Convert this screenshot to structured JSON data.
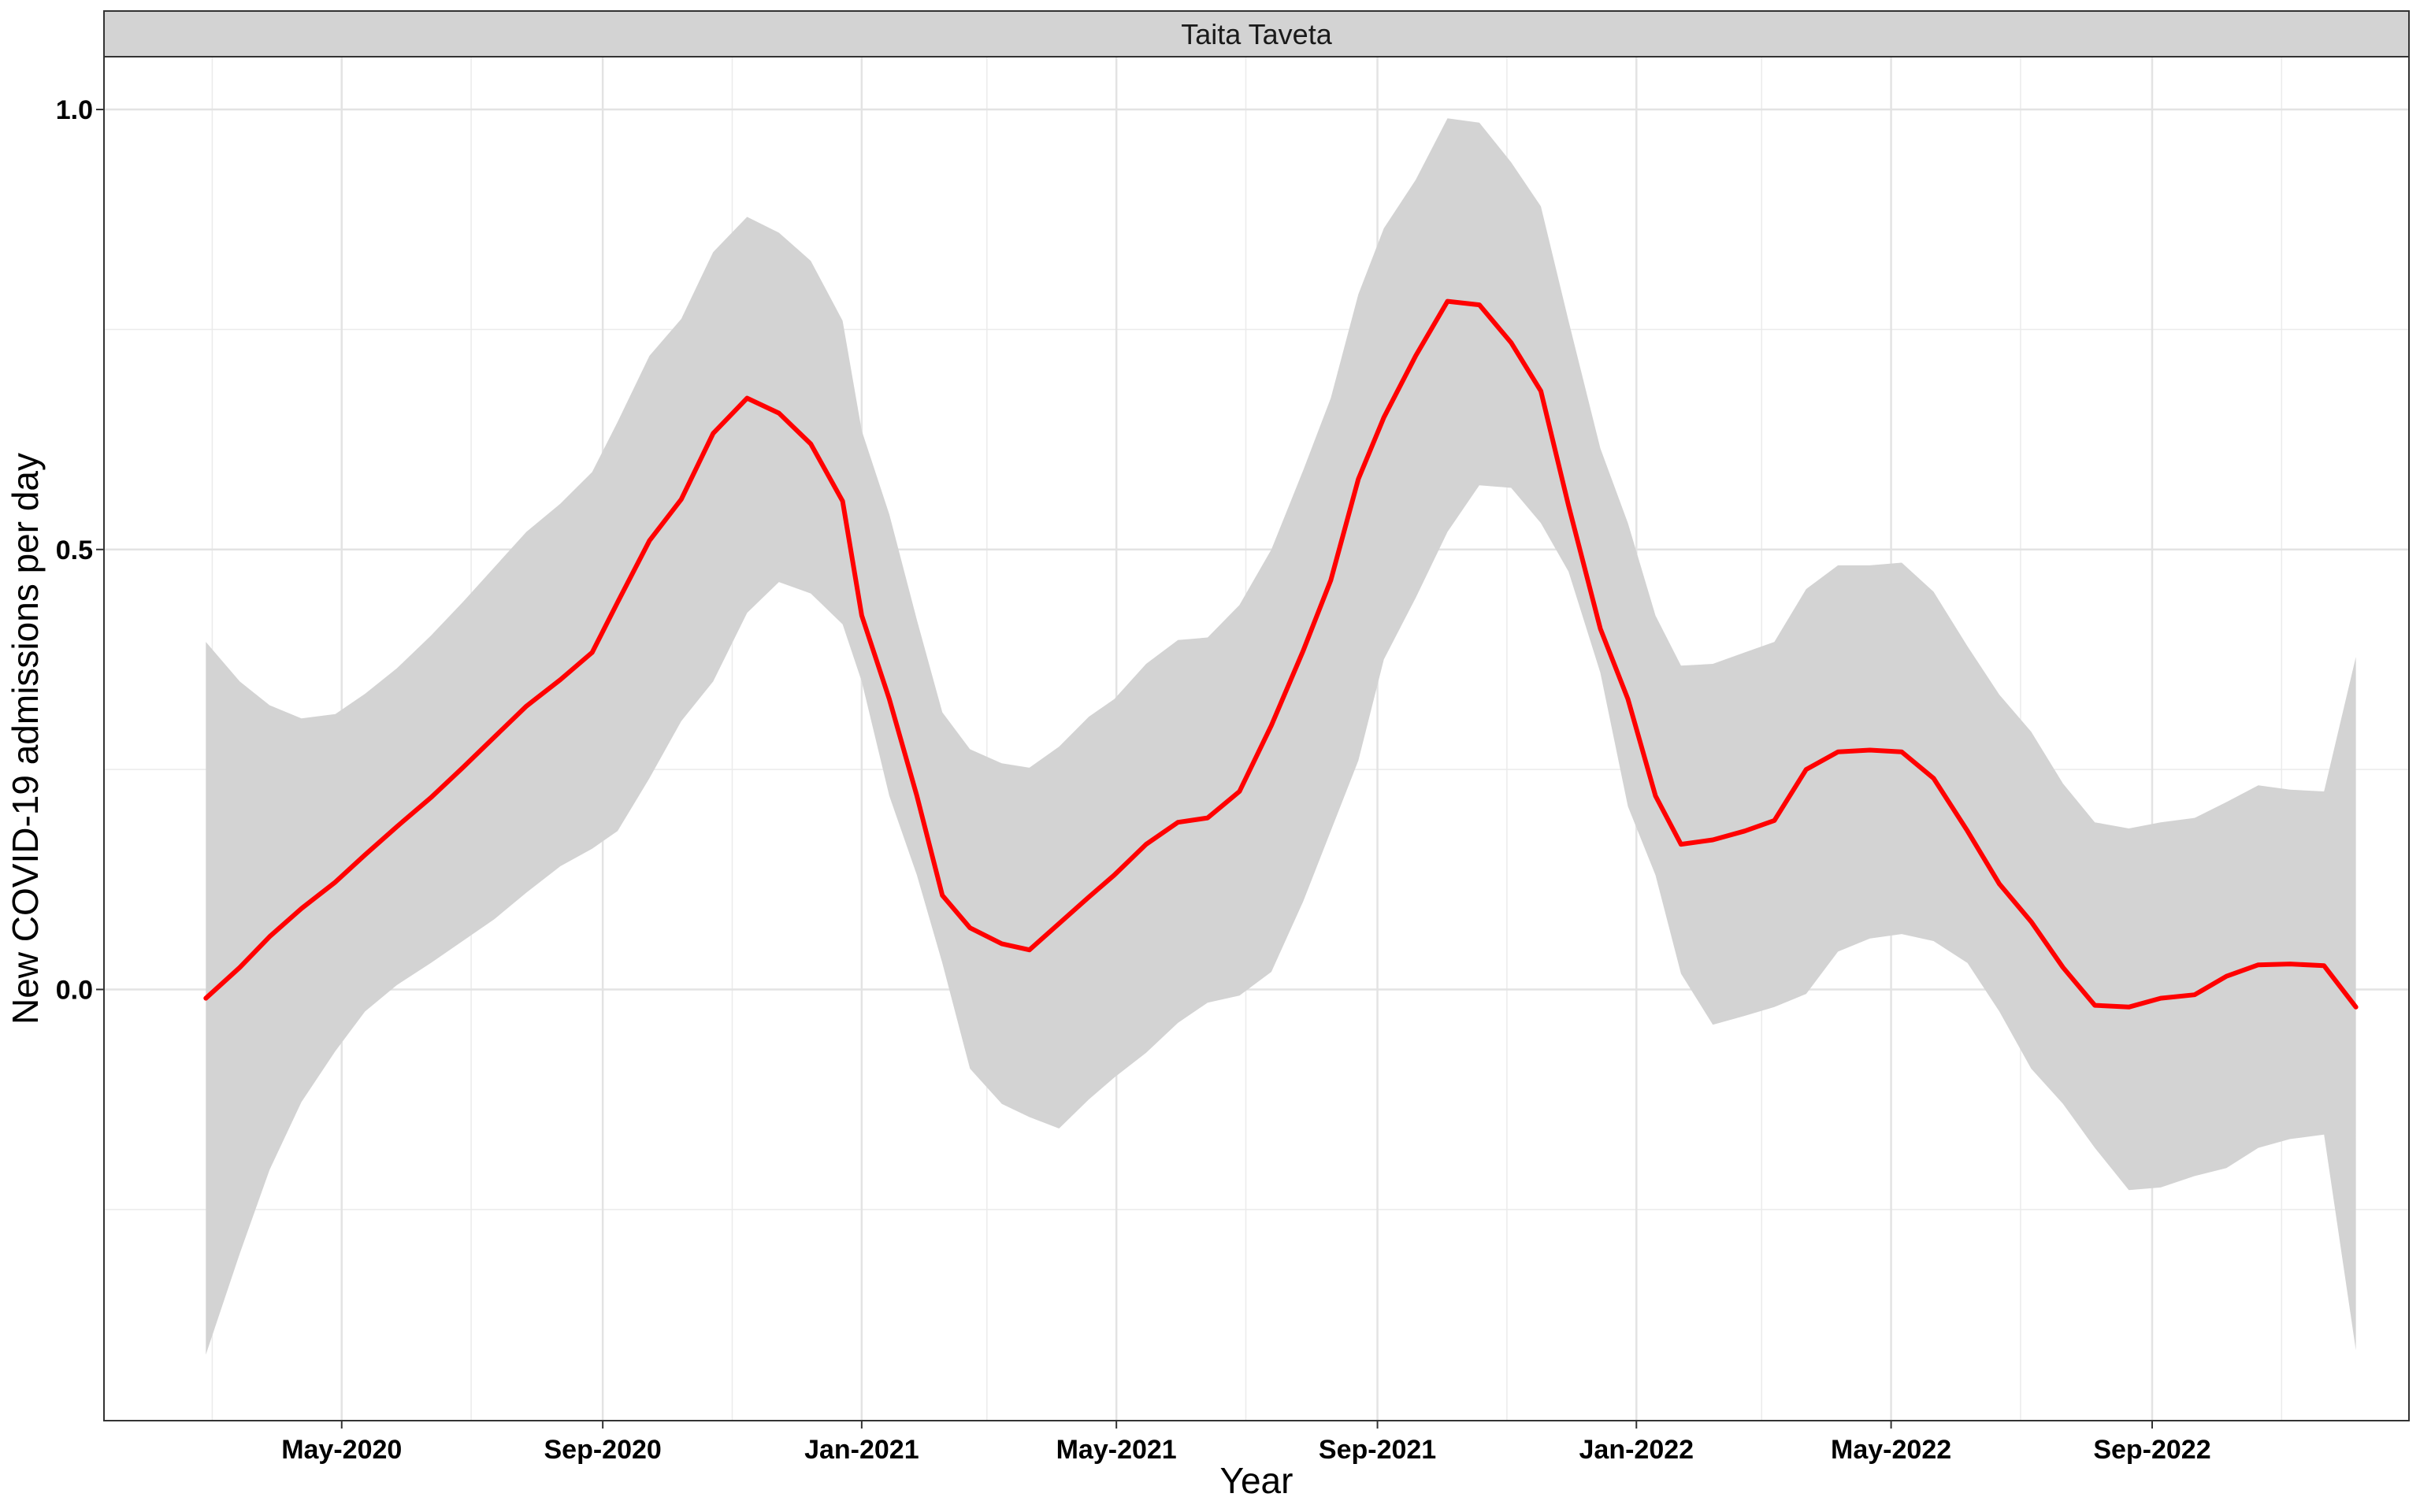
{
  "chart_data": {
    "type": "line",
    "facet_title": "Taita Taveta",
    "xlabel": "Year",
    "ylabel": "New COVID-19 admissions per day",
    "x_tick_labels": [
      "May-2020",
      "Sep-2020",
      "Jan-2021",
      "May-2021",
      "Sep-2021",
      "Jan-2022",
      "May-2022",
      "Sep-2022"
    ],
    "y_ticks": [
      0.0,
      0.5,
      1.0
    ],
    "y_tick_labels": [
      "0.0",
      "0.5",
      "1.0"
    ],
    "xlim": [
      "2020-01-10",
      "2022-12-31"
    ],
    "ylim": [
      -0.49,
      1.06
    ],
    "grid": true,
    "line_color": "#ff0000",
    "ribbon_color": "#d3d3d3",
    "series": [
      {
        "x": [
          "2020-02-27",
          "2020-03-14",
          "2020-03-28",
          "2020-04-12",
          "2020-04-28",
          "2020-05-12",
          "2020-05-27",
          "2020-06-12",
          "2020-06-27",
          "2020-07-12",
          "2020-07-27",
          "2020-08-12",
          "2020-08-27",
          "2020-09-08",
          "2020-09-23",
          "2020-10-08",
          "2020-10-23",
          "2020-11-08",
          "2020-11-23",
          "2020-12-08",
          "2020-12-23",
          "2021-01-01",
          "2021-01-14",
          "2021-01-27",
          "2021-02-08",
          "2021-02-21",
          "2021-03-08",
          "2021-03-21",
          "2021-04-04",
          "2021-04-18",
          "2021-04-30",
          "2021-05-15",
          "2021-05-30",
          "2021-06-13",
          "2021-06-28",
          "2021-07-13",
          "2021-07-28",
          "2021-08-10",
          "2021-08-23",
          "2021-09-04",
          "2021-09-19",
          "2021-10-04",
          "2021-10-19",
          "2021-11-03",
          "2021-11-17",
          "2021-11-30",
          "2021-12-15",
          "2021-12-28",
          "2022-01-10",
          "2022-01-22",
          "2022-02-06",
          "2022-02-21",
          "2022-03-07",
          "2022-03-22",
          "2022-04-06",
          "2022-04-21",
          "2022-05-06",
          "2022-05-21",
          "2022-06-06",
          "2022-06-21",
          "2022-07-06",
          "2022-07-21",
          "2022-08-05",
          "2022-08-21",
          "2022-09-05",
          "2022-09-21",
          "2022-10-06",
          "2022-10-21",
          "2022-11-05",
          "2022-11-21",
          "2022-12-06"
        ],
        "y": [
          -0.01,
          0.025,
          0.06,
          0.092,
          0.122,
          0.153,
          0.185,
          0.218,
          0.252,
          0.287,
          0.322,
          0.352,
          0.383,
          0.44,
          0.51,
          0.557,
          0.632,
          0.672,
          0.655,
          0.62,
          0.555,
          0.425,
          0.33,
          0.22,
          0.107,
          0.07,
          0.052,
          0.045,
          0.075,
          0.105,
          0.13,
          0.165,
          0.19,
          0.195,
          0.225,
          0.3,
          0.385,
          0.465,
          0.58,
          0.65,
          0.72,
          0.782,
          0.778,
          0.735,
          0.68,
          0.55,
          0.41,
          0.33,
          0.22,
          0.165,
          0.17,
          0.18,
          0.192,
          0.25,
          0.27,
          0.272,
          0.27,
          0.24,
          0.18,
          0.12,
          0.077,
          0.025,
          -0.018,
          -0.02,
          -0.01,
          -0.006,
          0.015,
          0.028,
          0.029,
          0.027,
          -0.02
        ],
        "lower": [
          -0.415,
          -0.3,
          -0.205,
          -0.128,
          -0.07,
          -0.025,
          0.005,
          0.03,
          0.055,
          0.08,
          0.11,
          0.14,
          0.16,
          0.18,
          0.24,
          0.305,
          0.35,
          0.428,
          0.463,
          0.45,
          0.415,
          0.35,
          0.22,
          0.13,
          0.03,
          -0.09,
          -0.13,
          -0.145,
          -0.158,
          -0.125,
          -0.1,
          -0.072,
          -0.038,
          -0.015,
          -0.007,
          0.02,
          0.1,
          0.18,
          0.26,
          0.375,
          0.445,
          0.52,
          0.573,
          0.57,
          0.53,
          0.475,
          0.36,
          0.208,
          0.13,
          0.018,
          -0.04,
          -0.03,
          -0.02,
          -0.005,
          0.043,
          0.058,
          0.063,
          0.055,
          0.03,
          -0.025,
          -0.09,
          -0.13,
          -0.18,
          -0.228,
          -0.225,
          -0.212,
          -0.203,
          -0.18,
          -0.17,
          -0.165,
          -0.41
        ],
        "upper": [
          0.395,
          0.35,
          0.323,
          0.308,
          0.313,
          0.336,
          0.365,
          0.402,
          0.44,
          0.48,
          0.52,
          0.552,
          0.588,
          0.645,
          0.72,
          0.762,
          0.838,
          0.878,
          0.86,
          0.828,
          0.76,
          0.635,
          0.54,
          0.42,
          0.315,
          0.273,
          0.257,
          0.252,
          0.276,
          0.31,
          0.33,
          0.37,
          0.397,
          0.4,
          0.437,
          0.5,
          0.59,
          0.672,
          0.79,
          0.865,
          0.92,
          0.99,
          0.985,
          0.94,
          0.89,
          0.76,
          0.615,
          0.53,
          0.425,
          0.368,
          0.37,
          0.383,
          0.395,
          0.455,
          0.482,
          0.482,
          0.485,
          0.452,
          0.39,
          0.335,
          0.293,
          0.234,
          0.19,
          0.183,
          0.19,
          0.195,
          0.213,
          0.232,
          0.227,
          0.225,
          0.378
        ]
      }
    ]
  }
}
